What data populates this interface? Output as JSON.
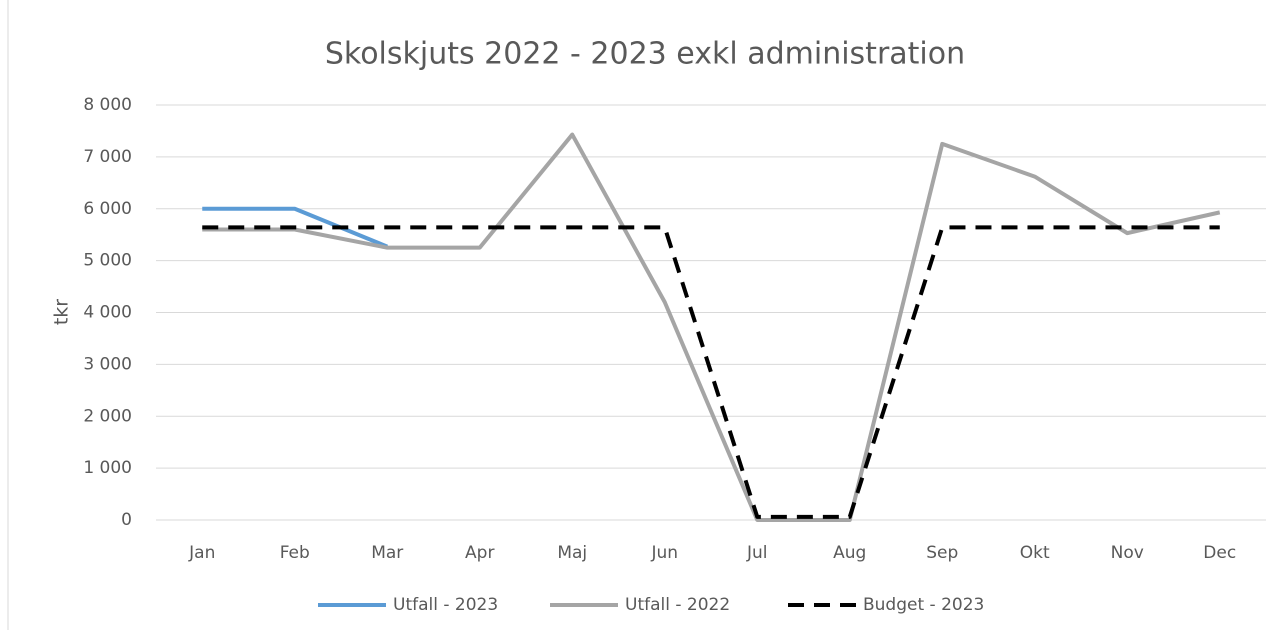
{
  "chart_data": {
    "type": "line",
    "title": "Skolskjuts 2022 - 2023 exkl administration",
    "y_label": "tkr",
    "categories": [
      "Jan",
      "Feb",
      "Mar",
      "Apr",
      "Maj",
      "Jun",
      "Jul",
      "Aug",
      "Sep",
      "Okt",
      "Nov",
      "Dec"
    ],
    "series": [
      {
        "name": "Utfall - 2023",
        "color": "#5b9bd5",
        "dash": false,
        "values": [
          6000,
          6000,
          5270,
          null,
          null,
          null,
          null,
          null,
          null,
          null,
          null,
          null
        ]
      },
      {
        "name": "Utfall - 2022",
        "color": "#a5a5a5",
        "dash": false,
        "values": [
          5600,
          5600,
          5250,
          5250,
          7430,
          4200,
          0,
          0,
          7250,
          6620,
          5530,
          5930
        ]
      },
      {
        "name": "Budget - 2023",
        "color": "#000000",
        "dash": true,
        "values": [
          5640,
          5640,
          5640,
          5640,
          5640,
          5640,
          60,
          60,
          5640,
          5640,
          5640,
          5640
        ]
      }
    ],
    "ylim": [
      0,
      8000
    ],
    "yticks": [
      0,
      {
        "value": 1000,
        "label": "1 000"
      },
      {
        "value": 2000,
        "label": "2 000"
      },
      {
        "value": 3000,
        "label": "3 000"
      },
      {
        "value": 4000,
        "label": "4 000"
      },
      {
        "value": 5000,
        "label": "5 000"
      },
      {
        "value": 6000,
        "label": "6 000"
      },
      {
        "value": 7000,
        "label": "7 000"
      },
      {
        "value": 8000,
        "label": "8 000"
      }
    ],
    "grid": true,
    "legend": "bottom"
  }
}
